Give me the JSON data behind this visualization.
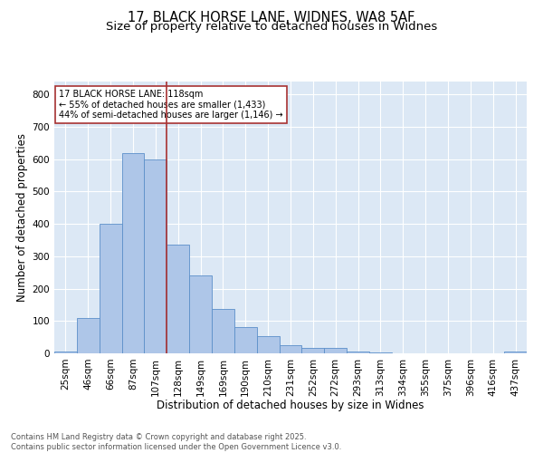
{
  "title_line1": "17, BLACK HORSE LANE, WIDNES, WA8 5AF",
  "title_line2": "Size of property relative to detached houses in Widnes",
  "bar_labels": [
    "25sqm",
    "46sqm",
    "66sqm",
    "87sqm",
    "107sqm",
    "128sqm",
    "149sqm",
    "169sqm",
    "190sqm",
    "210sqm",
    "231sqm",
    "252sqm",
    "272sqm",
    "293sqm",
    "313sqm",
    "334sqm",
    "355sqm",
    "375sqm",
    "396sqm",
    "416sqm",
    "437sqm"
  ],
  "bar_values": [
    5,
    110,
    400,
    620,
    600,
    335,
    240,
    138,
    80,
    52,
    25,
    17,
    17,
    7,
    2,
    0,
    0,
    0,
    0,
    0,
    5
  ],
  "bar_color": "#aec6e8",
  "bar_edge_color": "#5b8fc9",
  "vline_x": 4.5,
  "vline_color": "#a83232",
  "annotation_text": "17 BLACK HORSE LANE: 118sqm\n← 55% of detached houses are smaller (1,433)\n44% of semi-detached houses are larger (1,146) →",
  "annotation_box_color": "#a83232",
  "xlabel": "Distribution of detached houses by size in Widnes",
  "ylabel": "Number of detached properties",
  "ylim": [
    0,
    840
  ],
  "yticks": [
    0,
    100,
    200,
    300,
    400,
    500,
    600,
    700,
    800
  ],
  "background_color": "#dce8f5",
  "footer_line1": "Contains HM Land Registry data © Crown copyright and database right 2025.",
  "footer_line2": "Contains public sector information licensed under the Open Government Licence v3.0.",
  "grid_color": "#ffffff",
  "title_fontsize": 10.5,
  "subtitle_fontsize": 9.5,
  "axis_label_fontsize": 8.5,
  "tick_fontsize": 7.5,
  "footer_fontsize": 6.0
}
